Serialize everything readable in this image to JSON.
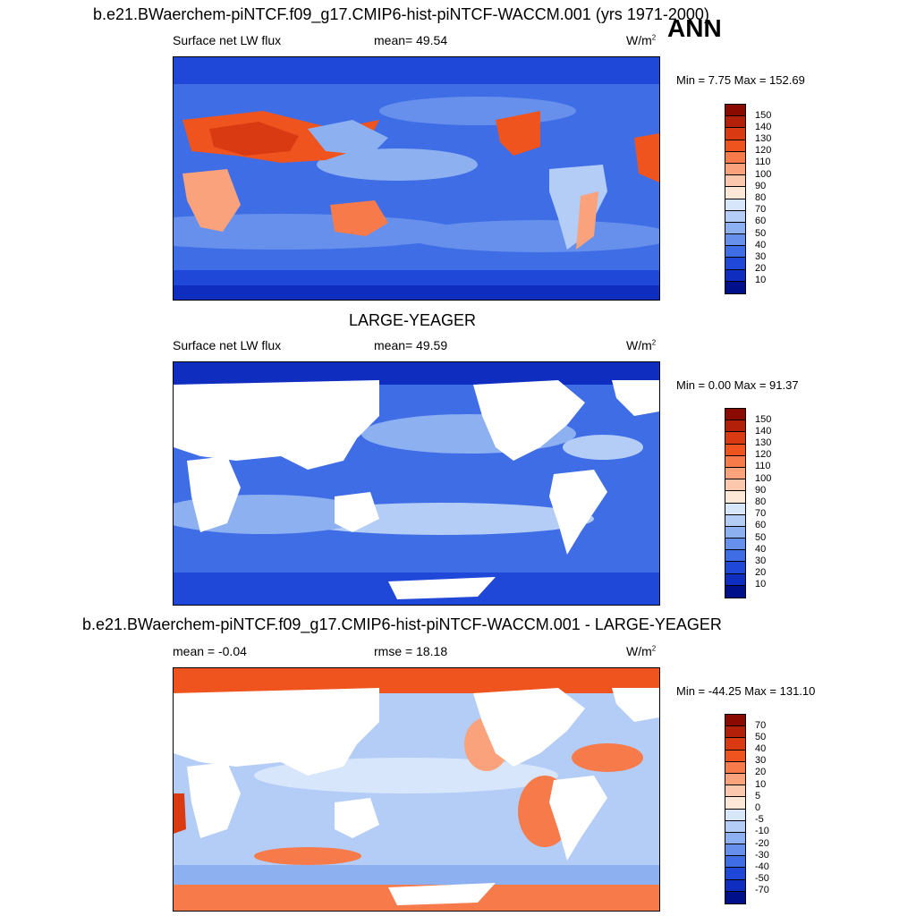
{
  "panel1": {
    "title": "b.e21.BWaerchem-piNTCF.f09_g17.CMIP6-hist-piNTCF-WACCM.001 (yrs 1971-2000)",
    "left": "Surface net LW flux",
    "center": "mean=  49.54",
    "units": "W/m",
    "units_sup": "2",
    "minmax": "Min =   7.75 Max = 152.69"
  },
  "season": "ANN",
  "panel2": {
    "title": "LARGE-YEAGER",
    "left": "Surface net LW flux",
    "center": "mean=  49.59",
    "units": "W/m",
    "units_sup": "2",
    "minmax": "Min =   0.00 Max =  91.37"
  },
  "panel3": {
    "title": "b.e21.BWaerchem-piNTCF.f09_g17.CMIP6-hist-piNTCF-WACCM.001 - LARGE-YEAGER",
    "left": "mean =  -0.04",
    "center": "rmse =  18.18",
    "units": "W/m",
    "units_sup": "2",
    "minmax": "Min = -44.25 Max = 131.10"
  },
  "colorbar_abs": {
    "labels": [
      "150",
      "140",
      "130",
      "120",
      "110",
      "100",
      "90",
      "80",
      "70",
      "60",
      "50",
      "40",
      "30",
      "20",
      "10"
    ],
    "colors": [
      "#8b0a00",
      "#b3200a",
      "#d93a12",
      "#f0541e",
      "#f67a4a",
      "#f9a27c",
      "#fcc8ad",
      "#fde7d6",
      "#d8e6fb",
      "#b3cdf7",
      "#8db0f1",
      "#6690ec",
      "#3f6de6",
      "#2048d8",
      "#0f2ec0",
      "#000f8a"
    ]
  },
  "colorbar_diff": {
    "labels": [
      "70",
      "50",
      "40",
      "30",
      "20",
      "10",
      "5",
      "0",
      "-5",
      "-10",
      "-20",
      "-30",
      "-40",
      "-50",
      "-70"
    ],
    "colors": [
      "#8b0a00",
      "#b3200a",
      "#d93a12",
      "#f0541e",
      "#f67a4a",
      "#f9a27c",
      "#fcc8ad",
      "#fde7d6",
      "#d8e6fb",
      "#b3cdf7",
      "#8db0f1",
      "#6690ec",
      "#3f6de6",
      "#2048d8",
      "#0f2ec0",
      "#000f8a"
    ]
  }
}
